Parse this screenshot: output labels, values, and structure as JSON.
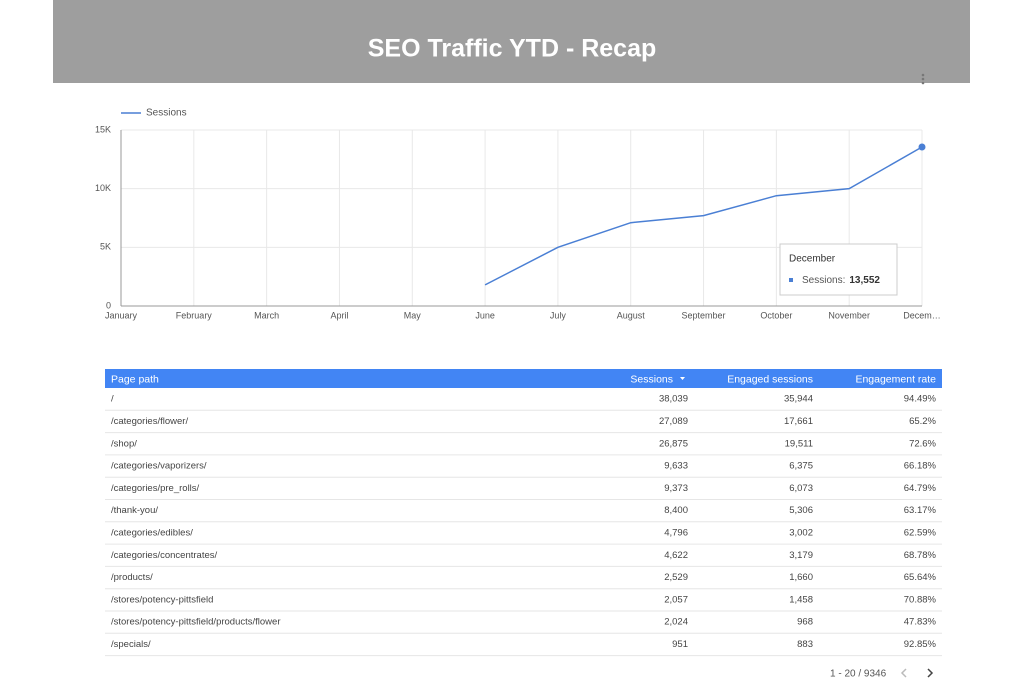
{
  "header": {
    "title": "SEO Traffic YTD - Recap"
  },
  "chart_data": {
    "type": "line",
    "categories": [
      "January",
      "February",
      "March",
      "April",
      "May",
      "June",
      "July",
      "August",
      "September",
      "October",
      "November",
      "Decem…"
    ],
    "series": [
      {
        "name": "Sessions",
        "color": "#4a7fd4",
        "values": [
          null,
          null,
          null,
          null,
          null,
          1800,
          5000,
          7100,
          7700,
          9400,
          10000,
          13552
        ]
      }
    ],
    "ylim": [
      0,
      15000
    ],
    "yticks": [
      0,
      {
        "value": 5000,
        "label": "5K"
      },
      {
        "value": 10000,
        "label": "10K"
      },
      {
        "value": 15000,
        "label": "15K"
      }
    ],
    "grid": true,
    "legend": "top-left",
    "tooltip": {
      "title": "December",
      "label": "Sessions:",
      "value": "13,552"
    }
  },
  "table": {
    "columns": [
      "Page path",
      "Sessions",
      "Engaged sessions",
      "Engagement rate"
    ],
    "rows": [
      [
        "/",
        "38,039",
        "35,944",
        "94.49%"
      ],
      [
        "/categories/flower/",
        "27,089",
        "17,661",
        "65.2%"
      ],
      [
        "/shop/",
        "26,875",
        "19,511",
        "72.6%"
      ],
      [
        "/categories/vaporizers/",
        "9,633",
        "6,375",
        "66.18%"
      ],
      [
        "/categories/pre_rolls/",
        "9,373",
        "6,073",
        "64.79%"
      ],
      [
        "/thank-you/",
        "8,400",
        "5,306",
        "63.17%"
      ],
      [
        "/categories/edibles/",
        "4,796",
        "3,002",
        "62.59%"
      ],
      [
        "/categories/concentrates/",
        "4,622",
        "3,179",
        "68.78%"
      ],
      [
        "/products/",
        "2,529",
        "1,660",
        "65.64%"
      ],
      [
        "/stores/potency-pittsfield",
        "2,057",
        "1,458",
        "70.88%"
      ],
      [
        "/stores/potency-pittsfield/products/flower",
        "2,024",
        "968",
        "47.83%"
      ],
      [
        "/specials/",
        "951",
        "883",
        "92.85%"
      ]
    ],
    "pagination": "1 - 20 / 9346"
  }
}
